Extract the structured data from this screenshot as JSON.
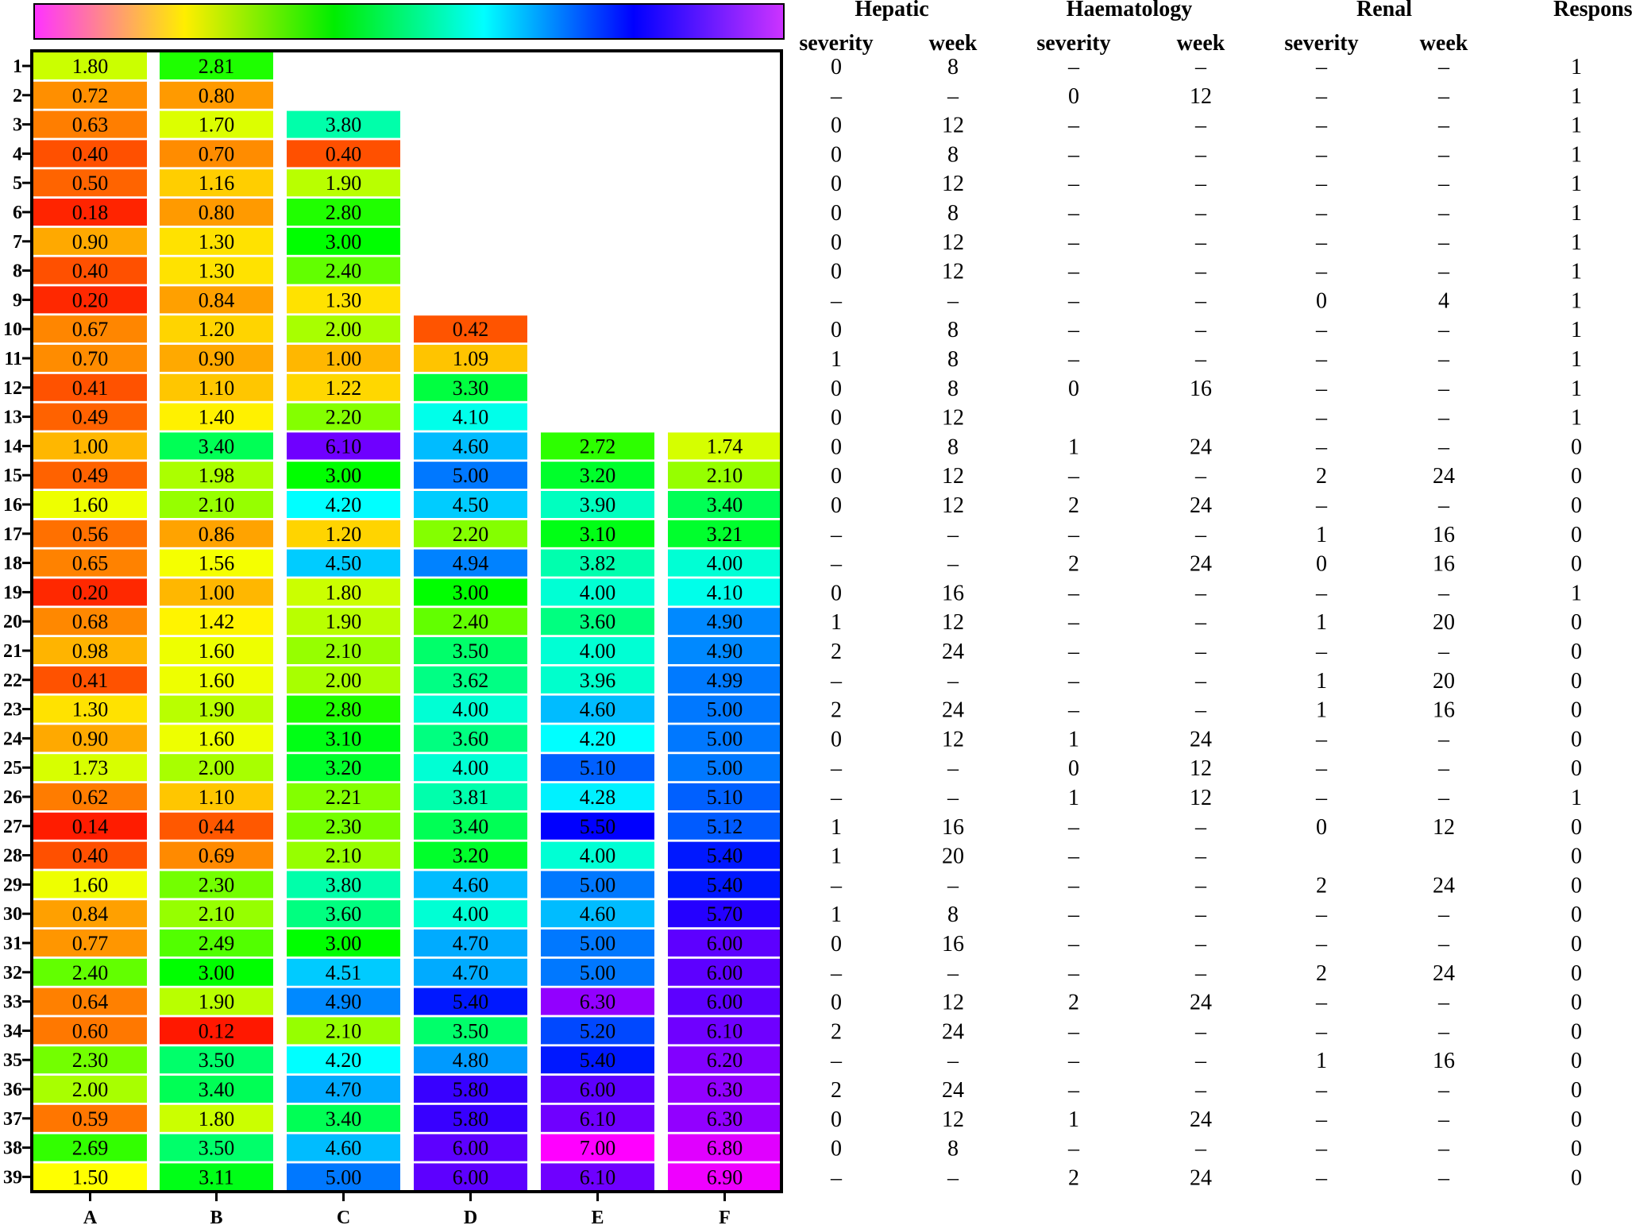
{
  "chart_data": {
    "type": "heatmap",
    "colorbar": {
      "stops": [
        "#ff33ff",
        "#ffee00",
        "#00ee00",
        "#00ffff",
        "#0000ff",
        "#cc33ff"
      ]
    },
    "columns": [
      "A",
      "B",
      "C",
      "D",
      "E",
      "F"
    ],
    "rows": [
      "1",
      "2",
      "3",
      "4",
      "5",
      "6",
      "7",
      "8",
      "9",
      "10",
      "11",
      "12",
      "13",
      "14",
      "15",
      "16",
      "17",
      "18",
      "19",
      "20",
      "21",
      "22",
      "23",
      "24",
      "25",
      "26",
      "27",
      "28",
      "29",
      "30",
      "31",
      "32",
      "33",
      "34",
      "35",
      "36",
      "37",
      "38",
      "39"
    ],
    "values": {
      "A": [
        "1.80",
        "0.72",
        "0.63",
        "0.40",
        "0.50",
        "0.18",
        "0.90",
        "0.40",
        "0.20",
        "0.67",
        "0.70",
        "0.41",
        "0.49",
        "1.00",
        "0.49",
        "1.60",
        "0.56",
        "0.65",
        "0.20",
        "0.68",
        "0.98",
        "0.41",
        "1.30",
        "0.90",
        "1.73",
        "0.62",
        "0.14",
        "0.40",
        "1.60",
        "0.84",
        "0.77",
        "2.40",
        "0.64",
        "0.60",
        "2.30",
        "2.00",
        "0.59",
        "2.69",
        "1.50"
      ],
      "B": [
        "2.81",
        "0.80",
        "1.70",
        "0.70",
        "1.16",
        "0.80",
        "1.30",
        "1.30",
        "0.84",
        "1.20",
        "0.90",
        "1.10",
        "1.40",
        "3.40",
        "1.98",
        "2.10",
        "0.86",
        "1.56",
        "1.00",
        "1.42",
        "1.60",
        "1.60",
        "1.90",
        "1.60",
        "2.00",
        "1.10",
        "0.44",
        "0.69",
        "2.30",
        "2.10",
        "2.49",
        "3.00",
        "1.90",
        "0.12",
        "3.50",
        "3.40",
        "1.80",
        "3.50",
        "3.11"
      ],
      "C": [
        null,
        null,
        "3.80",
        "0.40",
        "1.90",
        "2.80",
        "3.00",
        "2.40",
        "1.30",
        "2.00",
        "1.00",
        "1.22",
        "2.20",
        "6.10",
        "3.00",
        "4.20",
        "1.20",
        "4.50",
        "1.80",
        "1.90",
        "2.10",
        "2.00",
        "2.80",
        "3.10",
        "3.20",
        "2.21",
        "2.30",
        "2.10",
        "3.80",
        "3.60",
        "3.00",
        "4.51",
        "4.90",
        "2.10",
        "4.20",
        "4.70",
        "3.40",
        "4.60",
        "5.00"
      ],
      "D": [
        null,
        null,
        null,
        null,
        null,
        null,
        null,
        null,
        null,
        "0.42",
        "1.09",
        "3.30",
        "4.10",
        "4.60",
        "5.00",
        "4.50",
        "2.20",
        "4.94",
        "3.00",
        "2.40",
        "3.50",
        "3.62",
        "4.00",
        "3.60",
        "4.00",
        "3.81",
        "3.40",
        "3.20",
        "4.60",
        "4.00",
        "4.70",
        "4.70",
        "5.40",
        "3.50",
        "4.80",
        "5.80",
        "5.80",
        "6.00",
        "6.00"
      ],
      "E": [
        null,
        null,
        null,
        null,
        null,
        null,
        null,
        null,
        null,
        null,
        null,
        null,
        null,
        "2.72",
        "3.20",
        "3.90",
        "3.10",
        "3.82",
        "4.00",
        "3.60",
        "4.00",
        "3.96",
        "4.60",
        "4.20",
        "5.10",
        "4.28",
        "5.50",
        "4.00",
        "5.00",
        "4.60",
        "5.00",
        "5.00",
        "6.30",
        "5.20",
        "5.40",
        "6.00",
        "6.10",
        "7.00",
        "6.10"
      ],
      "F": [
        null,
        null,
        null,
        null,
        null,
        null,
        null,
        null,
        null,
        null,
        null,
        null,
        null,
        "1.74",
        "2.10",
        "3.40",
        "3.21",
        "4.00",
        "4.10",
        "4.90",
        "4.90",
        "4.99",
        "5.00",
        "5.00",
        "5.00",
        "5.10",
        "5.12",
        "5.40",
        "5.40",
        "5.70",
        "6.00",
        "6.00",
        "6.00",
        "6.10",
        "6.20",
        "6.30",
        "6.30",
        "6.80",
        "6.90"
      ]
    }
  },
  "table": {
    "groups": [
      "Hepatic",
      "Haematology",
      "Renal",
      "Response"
    ],
    "subheaders": [
      "severity",
      "week",
      "severity",
      "week",
      "severity",
      "week"
    ],
    "rows": [
      [
        "0",
        "8",
        "–",
        "–",
        "–",
        "–",
        "1"
      ],
      [
        "–",
        "–",
        "0",
        "12",
        "–",
        "–",
        "1"
      ],
      [
        "0",
        "12",
        "–",
        "–",
        "–",
        "–",
        "1"
      ],
      [
        "0",
        "8",
        "–",
        "–",
        "–",
        "–",
        "1"
      ],
      [
        "0",
        "12",
        "–",
        "–",
        "–",
        "–",
        "1"
      ],
      [
        "0",
        "8",
        "–",
        "–",
        "–",
        "–",
        "1"
      ],
      [
        "0",
        "12",
        "–",
        "–",
        "–",
        "–",
        "1"
      ],
      [
        "0",
        "12",
        "–",
        "–",
        "–",
        "–",
        "1"
      ],
      [
        "–",
        "–",
        "–",
        "–",
        "0",
        "4",
        "1"
      ],
      [
        "0",
        "8",
        "–",
        "–",
        "–",
        "–",
        "1"
      ],
      [
        "1",
        "8",
        "–",
        "–",
        "–",
        "–",
        "1"
      ],
      [
        "0",
        "8",
        "0",
        "16",
        "–",
        "–",
        "1"
      ],
      [
        "0",
        "12",
        "",
        "",
        "–",
        "–",
        "1"
      ],
      [
        "0",
        "8",
        "1",
        "24",
        "–",
        "–",
        "0"
      ],
      [
        "0",
        "12",
        "–",
        "–",
        "2",
        "24",
        "0"
      ],
      [
        "0",
        "12",
        "2",
        "24",
        "–",
        "–",
        "0"
      ],
      [
        "–",
        "–",
        "–",
        "–",
        "1",
        "16",
        "0"
      ],
      [
        "–",
        "–",
        "2",
        "24",
        "0",
        "16",
        "0"
      ],
      [
        "0",
        "16",
        "–",
        "–",
        "–",
        "–",
        "1"
      ],
      [
        "1",
        "12",
        "–",
        "–",
        "1",
        "20",
        "0"
      ],
      [
        "2",
        "24",
        "–",
        "–",
        "–",
        "–",
        "0"
      ],
      [
        "–",
        "–",
        "–",
        "–",
        "1",
        "20",
        "0"
      ],
      [
        "2",
        "24",
        "–",
        "–",
        "1",
        "16",
        "0"
      ],
      [
        "0",
        "12",
        "1",
        "24",
        "–",
        "–",
        "0"
      ],
      [
        "–",
        "–",
        "0",
        "12",
        "–",
        "–",
        "0"
      ],
      [
        "–",
        "–",
        "1",
        "12",
        "–",
        "–",
        "1"
      ],
      [
        "1",
        "16",
        "–",
        "–",
        "0",
        "12",
        "0"
      ],
      [
        "1",
        "20",
        "–",
        "–",
        "",
        "",
        "0"
      ],
      [
        "–",
        "–",
        "–",
        "–",
        "2",
        "24",
        "0"
      ],
      [
        "1",
        "8",
        "–",
        "–",
        "–",
        "–",
        "0"
      ],
      [
        "0",
        "16",
        "–",
        "–",
        "–",
        "–",
        "0"
      ],
      [
        "–",
        "–",
        "–",
        "–",
        "2",
        "24",
        "0"
      ],
      [
        "0",
        "12",
        "2",
        "24",
        "–",
        "–",
        "0"
      ],
      [
        "2",
        "24",
        "–",
        "–",
        "–",
        "–",
        "0"
      ],
      [
        "–",
        "–",
        "–",
        "–",
        "1",
        "16",
        "0"
      ],
      [
        "2",
        "24",
        "–",
        "–",
        "–",
        "–",
        "0"
      ],
      [
        "0",
        "12",
        "1",
        "24",
        "–",
        "–",
        "0"
      ],
      [
        "0",
        "8",
        "–",
        "–",
        "–",
        "–",
        "0"
      ],
      [
        "–",
        "–",
        "2",
        "24",
        "–",
        "–",
        "0"
      ]
    ]
  }
}
